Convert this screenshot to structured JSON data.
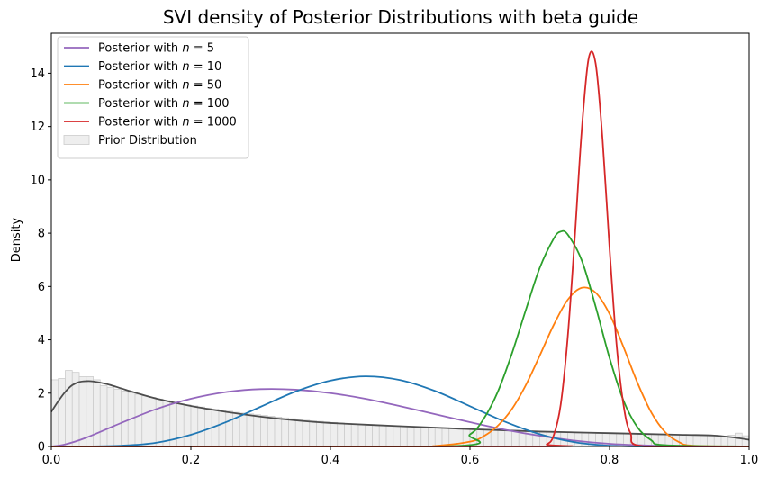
{
  "chart_data": {
    "type": "line",
    "title": "SVI density of Posterior Distributions with beta guide",
    "xlabel": "",
    "ylabel": "Density",
    "xlim": [
      0.0,
      1.0
    ],
    "ylim": [
      0,
      15.5
    ],
    "x_ticks": [
      "0.0",
      "0.2",
      "0.4",
      "0.6",
      "0.8",
      "1.0"
    ],
    "y_ticks": [
      "0",
      "2",
      "4",
      "6",
      "8",
      "10",
      "12",
      "14"
    ],
    "x_tick_values": [
      0.0,
      0.2,
      0.4,
      0.6,
      0.8,
      1.0
    ],
    "y_tick_values": [
      0,
      2,
      4,
      6,
      8,
      10,
      12,
      14
    ],
    "legend_position": "upper-left",
    "grid": false,
    "series": [
      {
        "name": "Posterior with $n = 5$",
        "legend_label": "Posterior with ",
        "legend_n": "n = 5",
        "color": "#9467bd",
        "x": [
          0.0,
          0.02,
          0.05,
          0.1,
          0.15,
          0.2,
          0.25,
          0.3,
          0.35,
          0.4,
          0.45,
          0.5,
          0.55,
          0.6,
          0.65,
          0.7,
          0.75,
          0.8,
          0.85,
          0.9,
          0.95,
          1.0
        ],
        "y": [
          0.0,
          0.08,
          0.33,
          0.88,
          1.4,
          1.79,
          2.04,
          2.15,
          2.13,
          2.0,
          1.79,
          1.51,
          1.21,
          0.91,
          0.63,
          0.4,
          0.22,
          0.1,
          0.04,
          0.01,
          0.0,
          0.0
        ]
      },
      {
        "name": "Posterior with $n = 10$",
        "legend_label": "Posterior with ",
        "legend_n": "n = 10",
        "color": "#1f77b4",
        "x": [
          0.0,
          0.05,
          0.1,
          0.15,
          0.2,
          0.25,
          0.3,
          0.35,
          0.4,
          0.45,
          0.5,
          0.55,
          0.6,
          0.65,
          0.7,
          0.75,
          0.8,
          0.85,
          0.9,
          1.0
        ],
        "y": [
          0.0,
          0.002,
          0.03,
          0.14,
          0.44,
          0.91,
          1.49,
          2.06,
          2.47,
          2.63,
          2.49,
          2.08,
          1.51,
          0.93,
          0.46,
          0.16,
          0.03,
          0.0,
          0.0,
          0.0
        ]
      },
      {
        "name": "Posterior with $n = 50$",
        "legend_label": "Posterior with ",
        "legend_n": "n = 50",
        "color": "#ff7f0e",
        "x": [
          0.0,
          0.5,
          0.55,
          0.6,
          0.62,
          0.64,
          0.66,
          0.68,
          0.7,
          0.72,
          0.74,
          0.76,
          0.78,
          0.8,
          0.82,
          0.84,
          0.86,
          0.88,
          0.9,
          0.92,
          1.0
        ],
        "y": [
          0.0,
          0.0,
          0.02,
          0.18,
          0.39,
          0.78,
          1.4,
          2.3,
          3.41,
          4.56,
          5.5,
          5.95,
          5.77,
          4.97,
          3.73,
          2.39,
          1.27,
          0.53,
          0.16,
          0.03,
          0.0
        ]
      },
      {
        "name": "Posterior with $n = 100$",
        "legend_label": "Posterior with ",
        "legend_n": "n = 100",
        "color": "#2ca02c",
        "x": [
          0.0,
          0.56,
          0.6,
          0.62,
          0.64,
          0.66,
          0.68,
          0.7,
          0.72,
          0.73,
          0.74,
          0.76,
          0.78,
          0.8,
          0.82,
          0.84,
          0.86,
          0.88,
          1.0
        ],
        "y": [
          0.0,
          0.0,
          0.45,
          1.05,
          2.06,
          3.48,
          5.12,
          6.7,
          7.8,
          8.06,
          7.95,
          6.99,
          5.25,
          3.32,
          1.72,
          0.72,
          0.23,
          0.05,
          0.0
        ]
      },
      {
        "name": "Posterior with $n = 1000$",
        "legend_label": "Posterior with ",
        "legend_n": "n = 1000",
        "color": "#d62728",
        "x": [
          0.0,
          0.69,
          0.71,
          0.72,
          0.73,
          0.74,
          0.75,
          0.76,
          0.77,
          0.78,
          0.79,
          0.8,
          0.81,
          0.82,
          0.83,
          0.85,
          1.0
        ],
        "y": [
          0.0,
          0.0,
          0.08,
          0.42,
          1.57,
          4.09,
          7.77,
          11.81,
          14.55,
          14.37,
          11.5,
          7.43,
          3.84,
          1.56,
          0.5,
          0.0,
          0.0
        ]
      }
    ],
    "prior_kde": {
      "name": "Prior KDE",
      "color": "#4d4d4d",
      "x": [
        0.0,
        0.01,
        0.02,
        0.03,
        0.04,
        0.05,
        0.06,
        0.08,
        0.1,
        0.12,
        0.15,
        0.2,
        0.25,
        0.3,
        0.35,
        0.4,
        0.5,
        0.6,
        0.7,
        0.8,
        0.9,
        0.95,
        0.98,
        1.0
      ],
      "y": [
        1.3,
        1.7,
        2.05,
        2.3,
        2.42,
        2.45,
        2.44,
        2.34,
        2.18,
        2.02,
        1.8,
        1.52,
        1.3,
        1.12,
        0.98,
        0.88,
        0.76,
        0.65,
        0.56,
        0.5,
        0.44,
        0.41,
        0.33,
        0.25
      ]
    },
    "prior_histogram": {
      "name": "Prior Distribution",
      "face_color": "#eeeeee",
      "edge_color": "#cccccc",
      "bin_width": 0.01,
      "heights": [
        2.5,
        2.55,
        2.85,
        2.78,
        2.62,
        2.62,
        2.5,
        2.28,
        2.22,
        2.15,
        2.08,
        2.02,
        1.96,
        1.9,
        1.84,
        1.78,
        1.72,
        1.66,
        1.6,
        1.56,
        1.52,
        1.48,
        1.44,
        1.4,
        1.36,
        1.32,
        1.28,
        1.25,
        1.22,
        1.19,
        1.16,
        1.13,
        1.1,
        1.07,
        1.04,
        1.01,
        0.98,
        0.96,
        0.94,
        0.92,
        0.9,
        0.88,
        0.86,
        0.84,
        0.82,
        0.8,
        0.8,
        0.79,
        0.78,
        0.77,
        0.76,
        0.75,
        0.74,
        0.73,
        0.72,
        0.71,
        0.7,
        0.69,
        0.68,
        0.67,
        0.66,
        0.65,
        0.64,
        0.63,
        0.62,
        0.61,
        0.6,
        0.59,
        0.58,
        0.57,
        0.56,
        0.55,
        0.54,
        0.53,
        0.52,
        0.51,
        0.5,
        0.5,
        0.49,
        0.49,
        0.48,
        0.48,
        0.47,
        0.47,
        0.46,
        0.46,
        0.45,
        0.45,
        0.44,
        0.44,
        0.43,
        0.43,
        0.42,
        0.42,
        0.41,
        0.4,
        0.38,
        0.42,
        0.5,
        0.4
      ]
    }
  }
}
